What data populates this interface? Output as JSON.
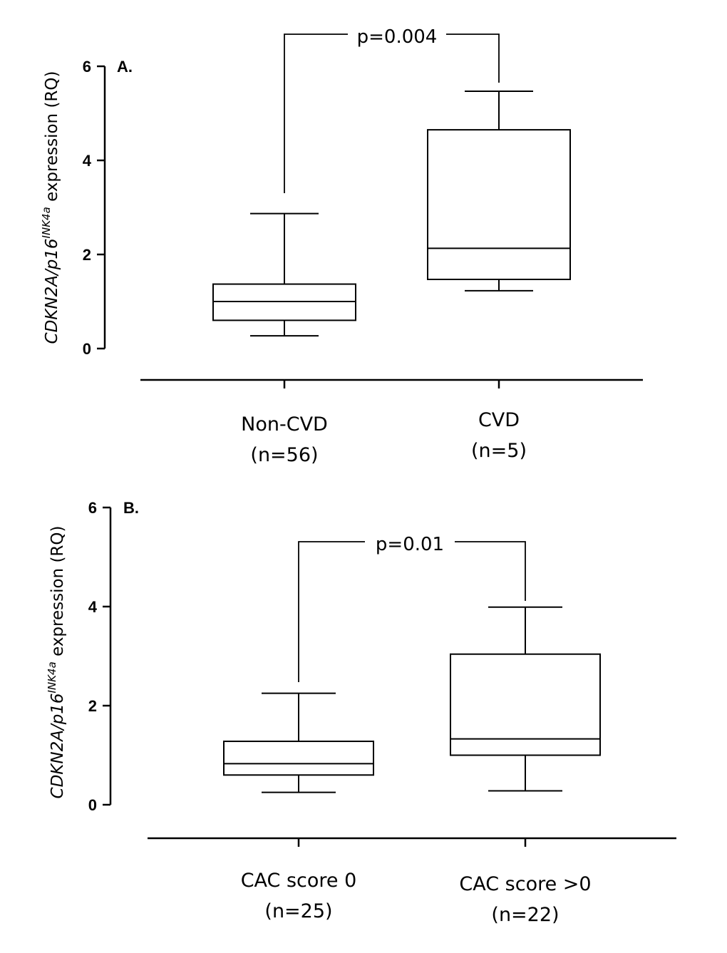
{
  "chart_data": [
    {
      "type": "box",
      "panel": "A.",
      "ylabel_parts": [
        "CDKN2A/p16",
        "INK4a",
        " expression (RQ)"
      ],
      "ylim": [
        0,
        6
      ],
      "yticks": [
        "0",
        "2",
        "4",
        "6"
      ],
      "categories": [
        {
          "name": "Non-CVD",
          "n": "(n=56)",
          "min": 0.27,
          "q1": 0.6,
          "median": 1.0,
          "q3": 1.37,
          "max": 2.87
        },
        {
          "name": "CVD",
          "n": "(n=5)",
          "min": 1.23,
          "q1": 1.47,
          "median": 2.13,
          "q3": 4.65,
          "max": 5.47
        }
      ],
      "comparison": {
        "label": "p=0.004"
      }
    },
    {
      "type": "box",
      "panel": "B.",
      "ylabel_parts": [
        "CDKN2A/p16",
        "INK4a",
        " expression (RQ)"
      ],
      "ylim": [
        0,
        6
      ],
      "yticks": [
        "0",
        "2",
        "4",
        "6"
      ],
      "categories": [
        {
          "name": "CAC score 0",
          "n": "(n=25)",
          "min": 0.25,
          "q1": 0.6,
          "median": 0.83,
          "q3": 1.28,
          "max": 2.25
        },
        {
          "name": "CAC score >0",
          "n": "(n=22)",
          "min": 0.28,
          "q1": 1.0,
          "median": 1.33,
          "q3": 3.04,
          "max": 3.99
        }
      ],
      "comparison": {
        "label": "p=0.01"
      }
    }
  ]
}
